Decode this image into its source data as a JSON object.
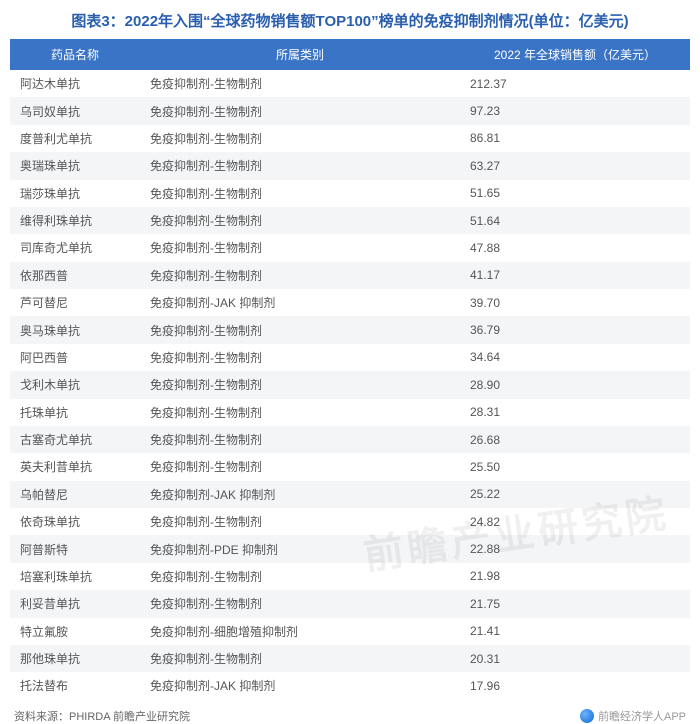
{
  "title": "图表3：2022年入围“全球药物销售额TOP100”榜单的免疫抑制剂情况(单位：亿美元)",
  "title_color": "#2a5fb0",
  "table": {
    "type": "table",
    "header_bg": "#3a74c6",
    "header_color": "#ffffff",
    "row_odd_bg": "#ffffff",
    "row_even_bg": "#f3f5f7",
    "text_color": "#555555",
    "columns": [
      "药品名称",
      "所属类别",
      "2022 年全球销售额（亿美元）"
    ],
    "rows": [
      [
        "阿达木单抗",
        "免疫抑制剂-生物制剂",
        "212.37"
      ],
      [
        "乌司奴单抗",
        "免疫抑制剂-生物制剂",
        "97.23"
      ],
      [
        "度普利尤单抗",
        "免疫抑制剂-生物制剂",
        "86.81"
      ],
      [
        "奥瑞珠单抗",
        "免疫抑制剂-生物制剂",
        "63.27"
      ],
      [
        "瑞莎珠单抗",
        "免疫抑制剂-生物制剂",
        "51.65"
      ],
      [
        "维得利珠单抗",
        "免疫抑制剂-生物制剂",
        "51.64"
      ],
      [
        "司库奇尤单抗",
        "免疫抑制剂-生物制剂",
        "47.88"
      ],
      [
        "依那西普",
        "免疫抑制剂-生物制剂",
        "41.17"
      ],
      [
        "芦可替尼",
        "免疫抑制剂-JAK 抑制剂",
        "39.70"
      ],
      [
        "奥马珠单抗",
        "免疫抑制剂-生物制剂",
        "36.79"
      ],
      [
        "阿巴西普",
        "免疫抑制剂-生物制剂",
        "34.64"
      ],
      [
        "戈利木单抗",
        "免疫抑制剂-生物制剂",
        "28.90"
      ],
      [
        "托珠单抗",
        "免疫抑制剂-生物制剂",
        "28.31"
      ],
      [
        "古塞奇尤单抗",
        "免疫抑制剂-生物制剂",
        "26.68"
      ],
      [
        "英夫利昔单抗",
        "免疫抑制剂-生物制剂",
        "25.50"
      ],
      [
        "乌帕替尼",
        "免疫抑制剂-JAK 抑制剂",
        "25.22"
      ],
      [
        "依奇珠单抗",
        "免疫抑制剂-生物制剂",
        "24.82"
      ],
      [
        "阿普斯特",
        "免疫抑制剂-PDE 抑制剂",
        "22.88"
      ],
      [
        "培塞利珠单抗",
        "免疫抑制剂-生物制剂",
        "21.98"
      ],
      [
        "利妥昔单抗",
        "免疫抑制剂-生物制剂",
        "21.75"
      ],
      [
        "特立氟胺",
        "免疫抑制剂-细胞增殖抑制剂",
        "21.41"
      ],
      [
        "那他珠单抗",
        "免疫抑制剂-生物制剂",
        "20.31"
      ],
      [
        "托法替布",
        "免疫抑制剂-JAK 抑制剂",
        "17.96"
      ]
    ]
  },
  "footer": {
    "source": "资料来源：PHIRDA 前瞻产业研究院",
    "brand": "前瞻经济学人APP"
  },
  "watermark": "前瞻产业研究院"
}
